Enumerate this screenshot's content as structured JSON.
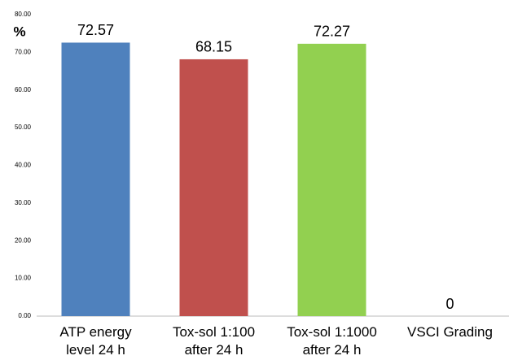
{
  "chart_data": {
    "type": "bar",
    "y_axis_label": "%",
    "categories": [
      "ATP energy\nlevel 24 h",
      "Tox-sol 1:100\nafter 24 h",
      "Tox-sol 1:1000\nafter 24 h",
      "VSCI Grading"
    ],
    "values": [
      72.57,
      68.15,
      72.27,
      0
    ],
    "colors": [
      "#4f81bd",
      "#c0504d",
      "#92d050",
      "#8064a2"
    ],
    "ylim": [
      0,
      80
    ],
    "yticks": [
      {
        "value": 0,
        "label": "0.00"
      },
      {
        "value": 10,
        "label": "10.00"
      },
      {
        "value": 20,
        "label": "20.00"
      },
      {
        "value": 30,
        "label": "30.00"
      },
      {
        "value": 40,
        "label": "40.00"
      },
      {
        "value": 50,
        "label": "50.00"
      },
      {
        "value": 60,
        "label": "60.00"
      },
      {
        "value": 70,
        "label": "70.00"
      },
      {
        "value": 80,
        "label": "80.00"
      }
    ],
    "grid": false
  }
}
